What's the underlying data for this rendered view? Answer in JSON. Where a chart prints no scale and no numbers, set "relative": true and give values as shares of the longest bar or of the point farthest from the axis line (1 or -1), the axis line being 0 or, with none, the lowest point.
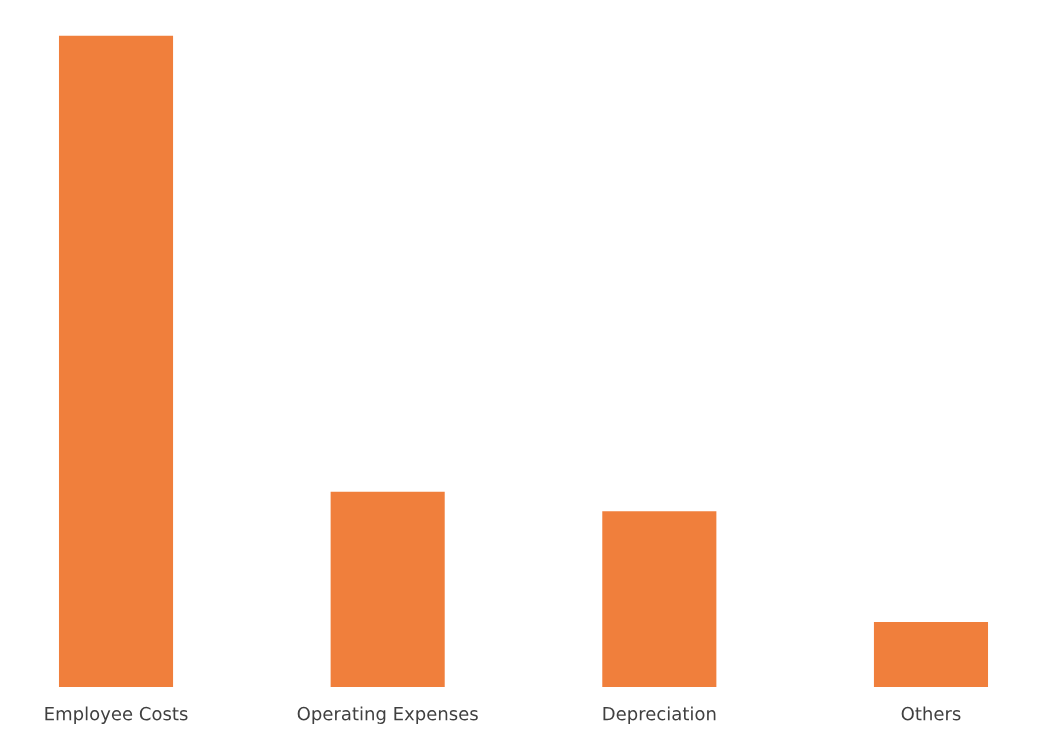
{
  "chart_data": {
    "type": "bar",
    "relative": true,
    "categories": [
      "Employee Costs",
      "Operating Expenses",
      "Depreciation",
      "Others"
    ],
    "values": [
      1,
      0.3,
      0.27,
      0.1
    ],
    "color": "#f07f3c",
    "grid": false,
    "legend": false
  }
}
